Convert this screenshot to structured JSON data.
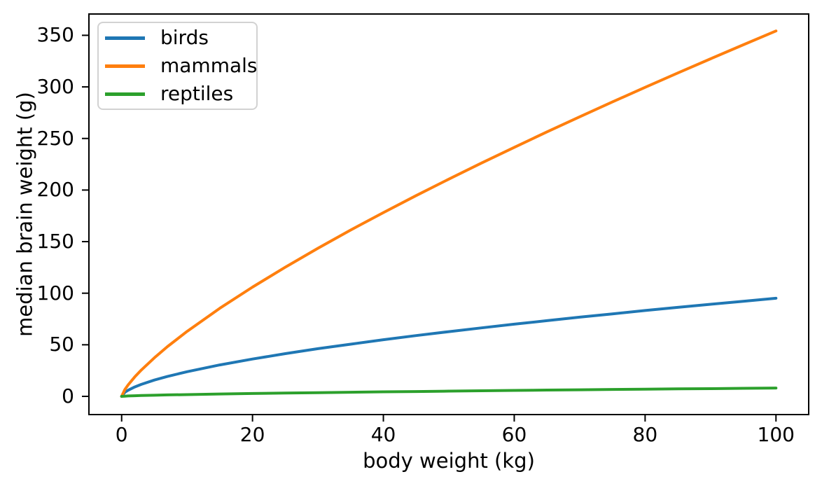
{
  "chart_data": {
    "type": "line",
    "title": "",
    "xlabel": "body weight (kg)",
    "ylabel": "median brain weight (g)",
    "xlim": [
      -5,
      105
    ],
    "ylim": [
      -17.65,
      370.65
    ],
    "x_ticks": [
      "0",
      "20",
      "40",
      "60",
      "80",
      "100"
    ],
    "x_tick_values": [
      0,
      20,
      40,
      60,
      80,
      100
    ],
    "y_ticks": [
      "0",
      "50",
      "100",
      "150",
      "200",
      "250",
      "300",
      "350"
    ],
    "y_tick_values": [
      0,
      50,
      100,
      150,
      200,
      250,
      300,
      350
    ],
    "grid": false,
    "legend_position": "upper left",
    "x": [
      0,
      0.5,
      1,
      2,
      3,
      5,
      7,
      10,
      15,
      20,
      25,
      30,
      35,
      40,
      45,
      50,
      55,
      60,
      65,
      70,
      75,
      80,
      85,
      90,
      95,
      100
    ],
    "series": [
      {
        "name": "birds",
        "color": "#1f77b4",
        "power_law": {
          "a": 6.0,
          "b": 0.6
        },
        "values": [
          0,
          4.0,
          6.0,
          9.1,
          11.6,
          15.8,
          19.3,
          23.9,
          30.5,
          36.2,
          41.4,
          46.2,
          50.6,
          54.9,
          58.9,
          62.7,
          66.4,
          70.0,
          73.4,
          76.8,
          80.0,
          83.2,
          86.3,
          89.3,
          92.2,
          95.1
        ]
      },
      {
        "name": "mammals",
        "color": "#ff7f0e",
        "power_law": {
          "a": 11.2,
          "b": 0.75
        },
        "values": [
          0,
          6.7,
          11.2,
          18.8,
          25.5,
          37.4,
          48.2,
          63.0,
          85.4,
          105.9,
          125.2,
          143.6,
          161.2,
          178.1,
          194.6,
          210.6,
          226.2,
          241.4,
          256.4,
          271.0,
          285.4,
          299.6,
          313.5,
          327.2,
          340.8,
          354.2
        ]
      },
      {
        "name": "reptiles",
        "color": "#2ca02c",
        "power_law": {
          "a": 0.37,
          "b": 0.67
        },
        "values": [
          0,
          0.2,
          0.4,
          0.6,
          0.8,
          1.1,
          1.4,
          1.7,
          2.3,
          2.8,
          3.2,
          3.6,
          4.0,
          4.4,
          4.7,
          5.1,
          5.4,
          5.8,
          6.1,
          6.4,
          6.7,
          7.0,
          7.3,
          7.5,
          7.8,
          8.1
        ]
      }
    ]
  }
}
